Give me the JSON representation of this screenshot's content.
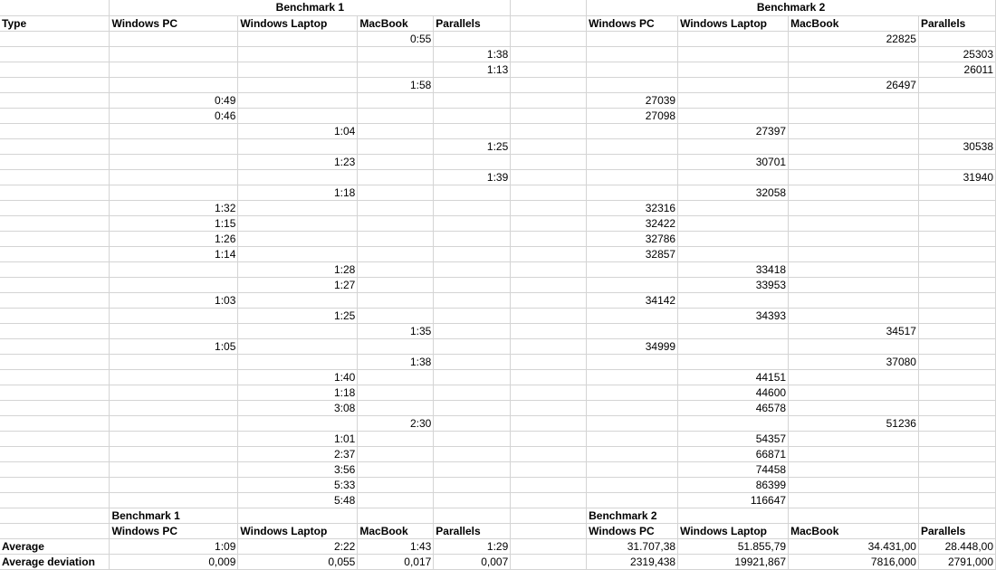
{
  "sheet": {
    "rows": [
      [
        "",
        "Benchmark 1",
        null,
        null,
        null,
        "",
        "Benchmark 2",
        null,
        null,
        null
      ],
      [
        "Type",
        "Windows PC",
        "Windows Laptop",
        "MacBook",
        "Parallels",
        "",
        "Windows PC",
        "Windows Laptop",
        "MacBook",
        "Parallels"
      ],
      [
        "",
        "",
        "",
        "0:55",
        "",
        "",
        "",
        "",
        "22825",
        ""
      ],
      [
        "",
        "",
        "",
        "",
        "1:38",
        "",
        "",
        "",
        "",
        "25303"
      ],
      [
        "",
        "",
        "",
        "",
        "1:13",
        "",
        "",
        "",
        "",
        "26011"
      ],
      [
        "",
        "",
        "",
        "1:58",
        "",
        "",
        "",
        "",
        "26497",
        ""
      ],
      [
        "",
        "0:49",
        "",
        "",
        "",
        "",
        "27039",
        "",
        "",
        ""
      ],
      [
        "",
        "0:46",
        "",
        "",
        "",
        "",
        "27098",
        "",
        "",
        ""
      ],
      [
        "",
        "",
        "1:04",
        "",
        "",
        "",
        "",
        "27397",
        "",
        ""
      ],
      [
        "",
        "",
        "",
        "",
        "1:25",
        "",
        "",
        "",
        "",
        "30538"
      ],
      [
        "",
        "",
        "1:23",
        "",
        "",
        "",
        "",
        "30701",
        "",
        ""
      ],
      [
        "",
        "",
        "",
        "",
        "1:39",
        "",
        "",
        "",
        "",
        "31940"
      ],
      [
        "",
        "",
        "1:18",
        "",
        "",
        "",
        "",
        "32058",
        "",
        ""
      ],
      [
        "",
        "1:32",
        "",
        "",
        "",
        "",
        "32316",
        "",
        "",
        ""
      ],
      [
        "",
        "1:15",
        "",
        "",
        "",
        "",
        "32422",
        "",
        "",
        ""
      ],
      [
        "",
        "1:26",
        "",
        "",
        "",
        "",
        "32786",
        "",
        "",
        ""
      ],
      [
        "",
        "1:14",
        "",
        "",
        "",
        "",
        "32857",
        "",
        "",
        ""
      ],
      [
        "",
        "",
        "1:28",
        "",
        "",
        "",
        "",
        "33418",
        "",
        ""
      ],
      [
        "",
        "",
        "1:27",
        "",
        "",
        "",
        "",
        "33953",
        "",
        ""
      ],
      [
        "",
        "1:03",
        "",
        "",
        "",
        "",
        "34142",
        "",
        "",
        ""
      ],
      [
        "",
        "",
        "1:25",
        "",
        "",
        "",
        "",
        "34393",
        "",
        ""
      ],
      [
        "",
        "",
        "",
        "1:35",
        "",
        "",
        "",
        "",
        "34517",
        ""
      ],
      [
        "",
        "1:05",
        "",
        "",
        "",
        "",
        "34999",
        "",
        "",
        ""
      ],
      [
        "",
        "",
        "",
        "1:38",
        "",
        "",
        "",
        "",
        "37080",
        ""
      ],
      [
        "",
        "",
        "1:40",
        "",
        "",
        "",
        "",
        "44151",
        "",
        ""
      ],
      [
        "",
        "",
        "1:18",
        "",
        "",
        "",
        "",
        "44600",
        "",
        ""
      ],
      [
        "",
        "",
        "3:08",
        "",
        "",
        "",
        "",
        "46578",
        "",
        ""
      ],
      [
        "",
        "",
        "",
        "2:30",
        "",
        "",
        "",
        "",
        "51236",
        ""
      ],
      [
        "",
        "",
        "1:01",
        "",
        "",
        "",
        "",
        "54357",
        "",
        ""
      ],
      [
        "",
        "",
        "2:37",
        "",
        "",
        "",
        "",
        "66871",
        "",
        ""
      ],
      [
        "",
        "",
        "3:56",
        "",
        "",
        "",
        "",
        "74458",
        "",
        ""
      ],
      [
        "",
        "",
        "5:33",
        "",
        "",
        "",
        "",
        "86399",
        "",
        ""
      ],
      [
        "",
        "",
        "5:48",
        "",
        "",
        "",
        "",
        "116647",
        "",
        ""
      ],
      [
        "",
        "Benchmark 1",
        "",
        "",
        "",
        "",
        "Benchmark 2",
        "",
        "",
        ""
      ],
      [
        "",
        "Windows PC",
        "Windows Laptop",
        "MacBook",
        "Parallels",
        "",
        "Windows PC",
        "Windows Laptop",
        "MacBook",
        "Parallels"
      ],
      [
        "Average",
        "1:09",
        "2:22",
        "1:43",
        "1:29",
        "",
        "31.707,38",
        "51.855,79",
        "34.431,00",
        "28.448,00"
      ],
      [
        "Average deviation",
        "0,009",
        "0,055",
        "0,017",
        "0,007",
        "",
        "2319,438",
        "19921,867",
        "7816,000",
        "2791,000"
      ]
    ]
  }
}
